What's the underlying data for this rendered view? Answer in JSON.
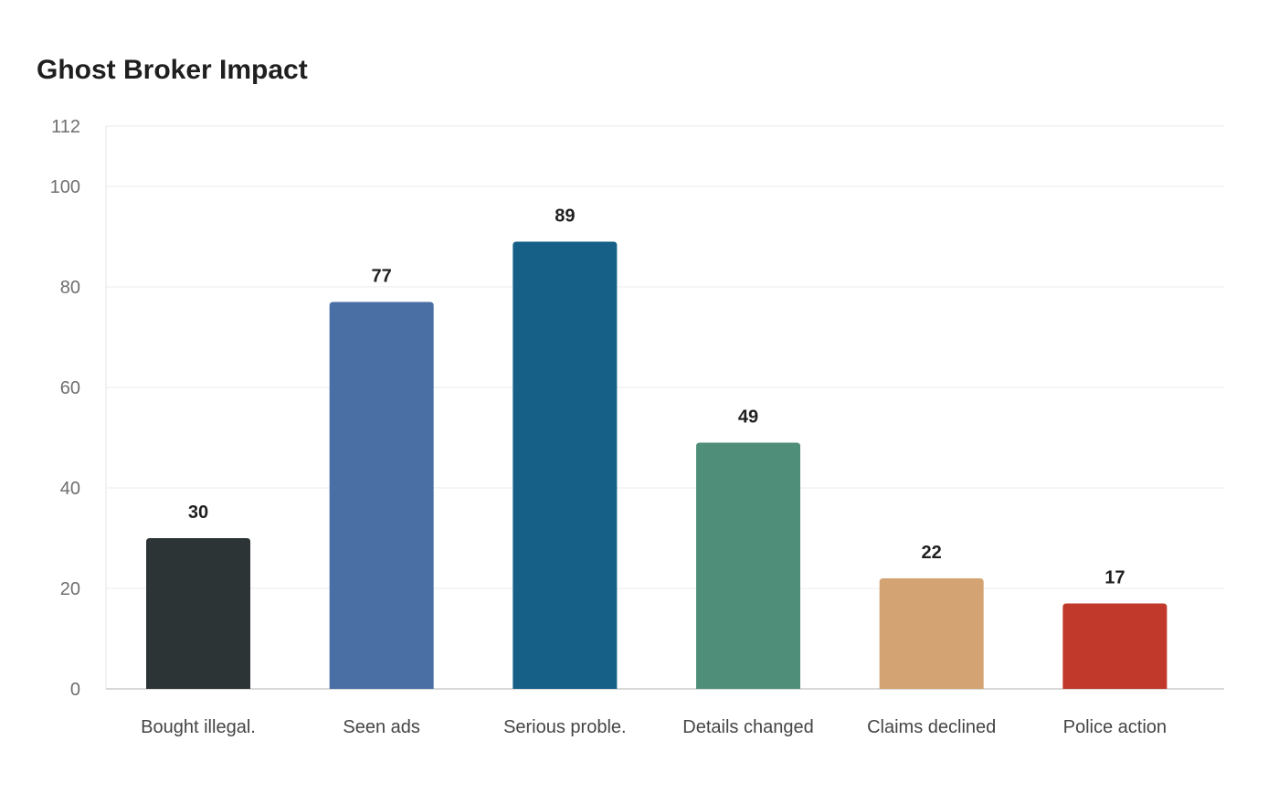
{
  "chart_data": {
    "type": "bar",
    "title": "Ghost Broker Impact",
    "xlabel": "",
    "ylabel": "",
    "categories": [
      "Bought illegal.",
      "Seen ads",
      "Serious proble.",
      "Details changed",
      "Claims declined",
      "Police action"
    ],
    "values": [
      30,
      77,
      89,
      49,
      22,
      17
    ],
    "colors": [
      "#2d3436",
      "#4a6fa5",
      "#166088",
      "#4f8f7a",
      "#d4a373",
      "#c0392b"
    ],
    "ylim": [
      0,
      112
    ],
    "yticks": [
      0,
      20,
      40,
      60,
      80,
      100,
      112
    ],
    "grid": true,
    "legend": "none"
  }
}
